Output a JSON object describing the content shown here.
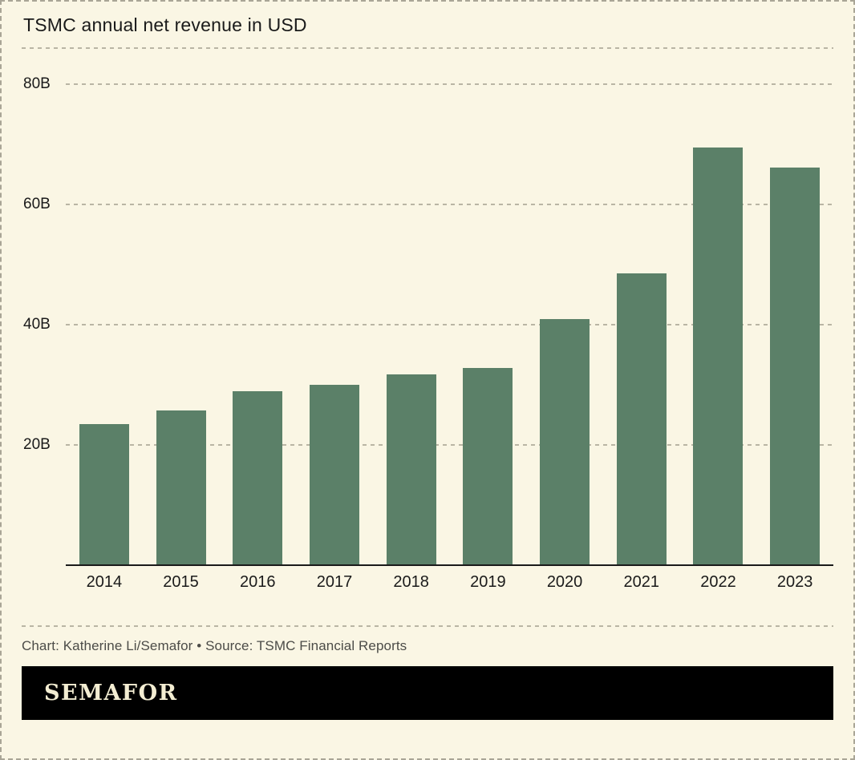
{
  "chart_data": {
    "type": "bar",
    "title": "TSMC annual net revenue in USD",
    "categories": [
      "2014",
      "2015",
      "2016",
      "2017",
      "2018",
      "2019",
      "2020",
      "2021",
      "2022",
      "2023"
    ],
    "values": [
      23.5,
      25.8,
      29.0,
      30.0,
      31.8,
      32.8,
      41.0,
      48.5,
      69.5,
      66.2
    ],
    "unit": "B",
    "ylim": [
      0,
      80
    ],
    "yticks": [
      20,
      40,
      60,
      80
    ],
    "ytick_labels": [
      "20B",
      "40B",
      "60B",
      "80B"
    ],
    "bar_color": "#5b8068",
    "grid": true,
    "xlabel": "",
    "ylabel": ""
  },
  "footer": {
    "credit": "Chart: Katherine Li/Semafor • Source: TSMC Financial Reports",
    "logo": "SEMAFOR"
  }
}
